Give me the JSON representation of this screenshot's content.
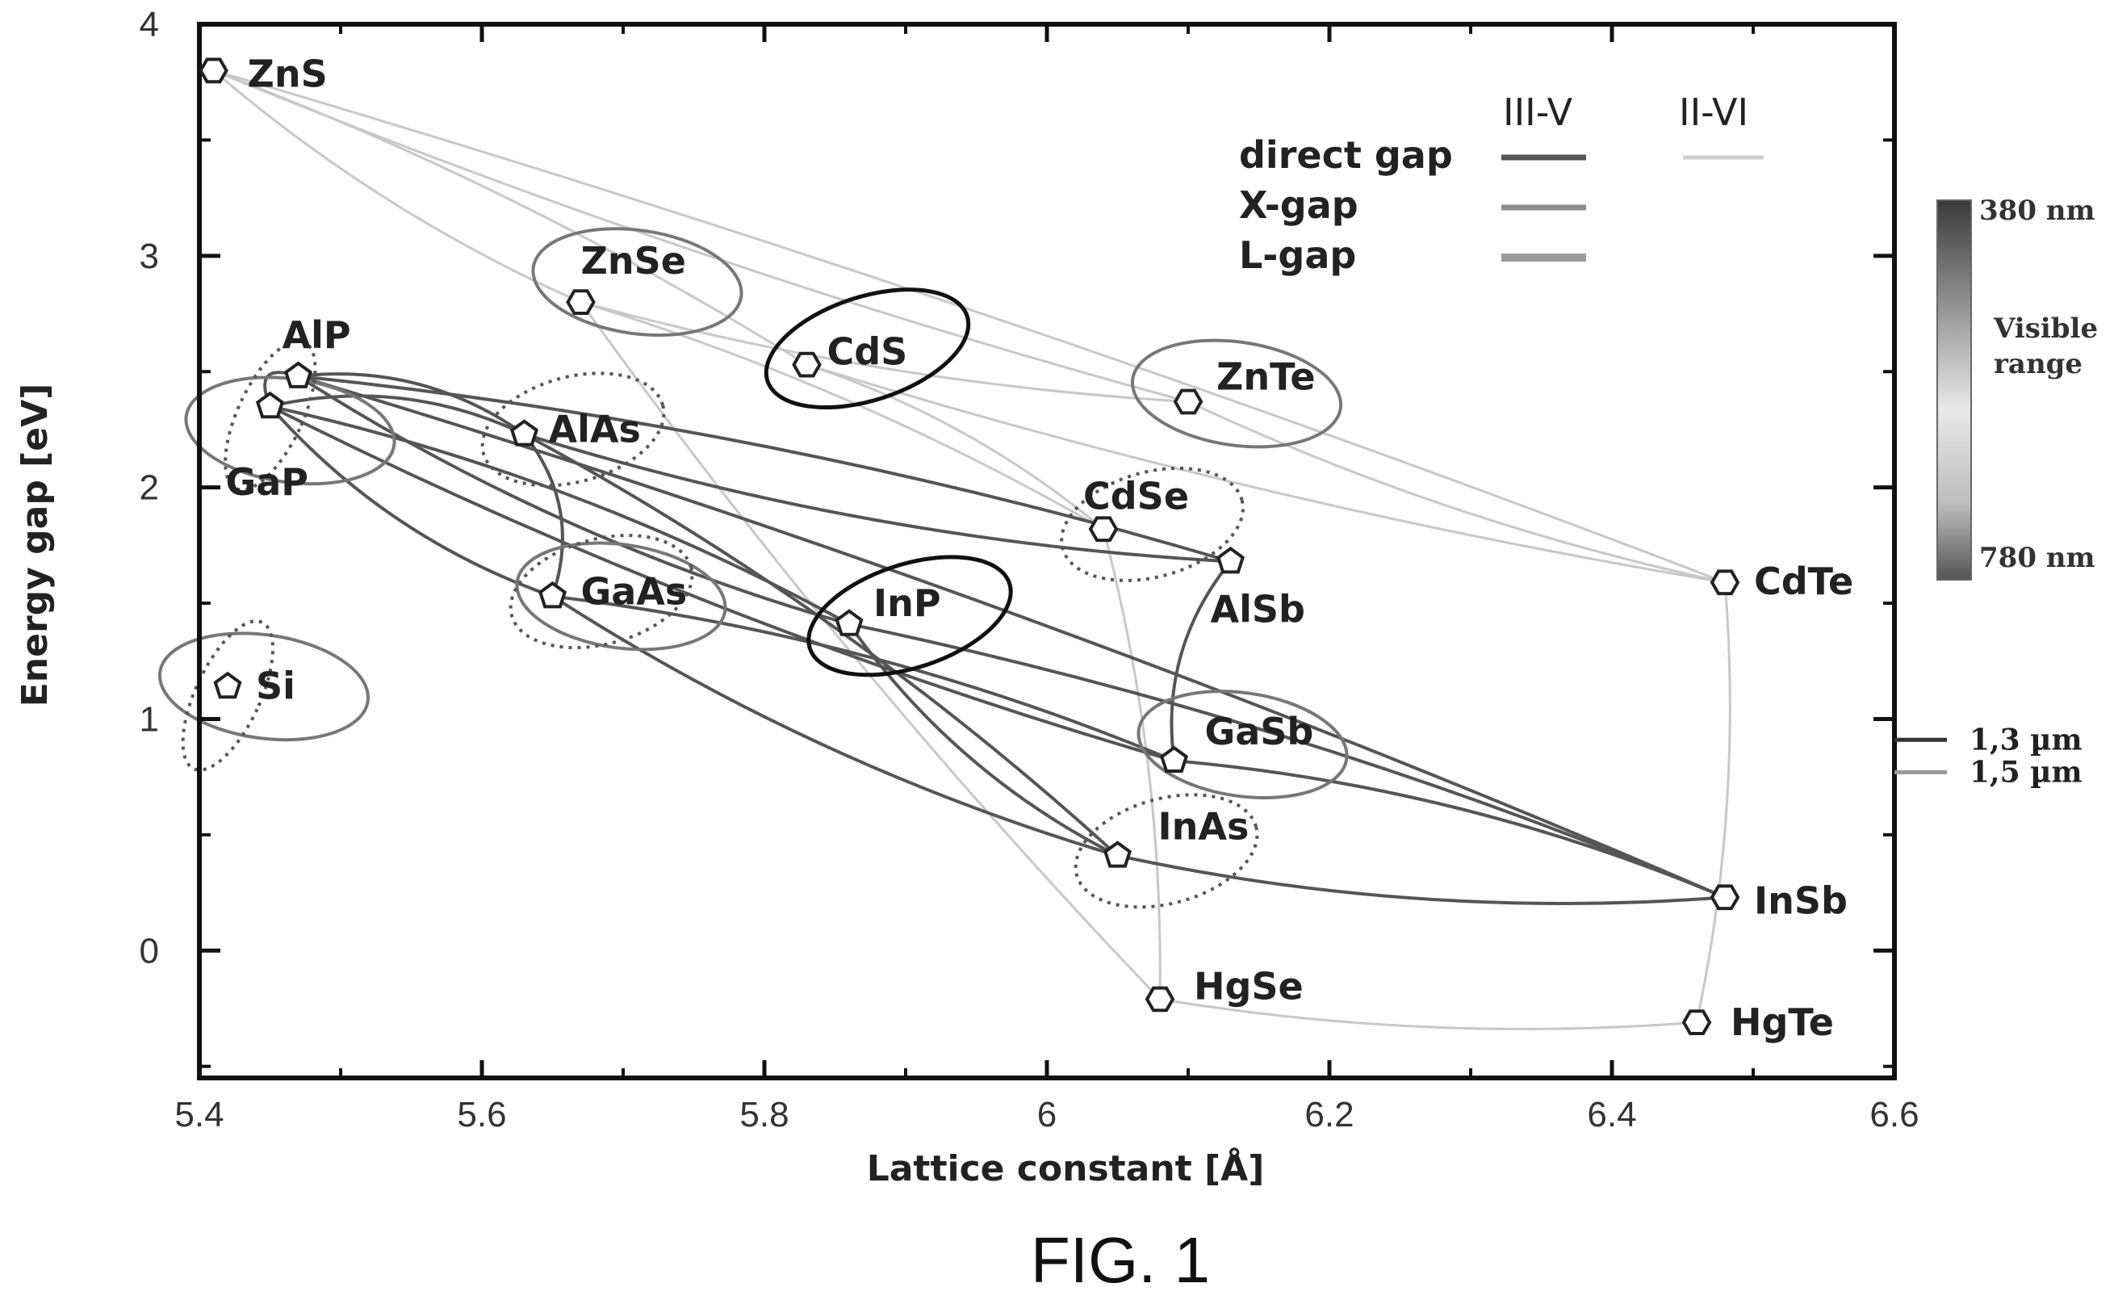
{
  "chart_data": {
    "type": "scatter",
    "xlabel": "Lattice constant [Å]",
    "ylabel": "Energy gap [eV]",
    "xlim": [
      5.4,
      6.6
    ],
    "ylim": [
      -0.55,
      4.0
    ],
    "x_ticks": [
      5.4,
      5.6,
      5.8,
      6.0,
      6.2,
      6.4,
      6.6
    ],
    "x_tick_labels": [
      "5.4",
      "5.6",
      "5.8",
      "6",
      "6.2",
      "6.4",
      "6.6"
    ],
    "y_ticks": [
      0,
      1,
      2,
      3,
      4
    ],
    "y_tick_labels": [
      "0",
      "1",
      "2",
      "3",
      "4"
    ],
    "materials": [
      {
        "name": "ZnS",
        "x": 5.41,
        "y": 3.8,
        "marker": "hexagon"
      },
      {
        "name": "ZnSe",
        "x": 5.67,
        "y": 2.8,
        "marker": "hexagon"
      },
      {
        "name": "CdS",
        "x": 5.83,
        "y": 2.53,
        "marker": "hexagon"
      },
      {
        "name": "ZnTe",
        "x": 6.1,
        "y": 2.37,
        "marker": "hexagon"
      },
      {
        "name": "AlP",
        "x": 5.47,
        "y": 2.48,
        "marker": "pentagon"
      },
      {
        "name": "GaP",
        "x": 5.45,
        "y": 2.35,
        "marker": "pentagon"
      },
      {
        "name": "AlAs",
        "x": 5.63,
        "y": 2.23,
        "marker": "pentagon"
      },
      {
        "name": "CdSe",
        "x": 6.04,
        "y": 1.82,
        "marker": "hexagon"
      },
      {
        "name": "AlSb",
        "x": 6.13,
        "y": 1.68,
        "marker": "pentagon"
      },
      {
        "name": "GaAs",
        "x": 5.65,
        "y": 1.53,
        "marker": "pentagon"
      },
      {
        "name": "InP",
        "x": 5.86,
        "y": 1.41,
        "marker": "pentagon"
      },
      {
        "name": "CdTe",
        "x": 6.48,
        "y": 1.59,
        "marker": "hexagon"
      },
      {
        "name": "Si",
        "x": 5.42,
        "y": 1.14,
        "marker": "pentagon"
      },
      {
        "name": "GaSb",
        "x": 6.09,
        "y": 0.82,
        "marker": "pentagon"
      },
      {
        "name": "InAs",
        "x": 6.05,
        "y": 0.41,
        "marker": "pentagon"
      },
      {
        "name": "InSb",
        "x": 6.48,
        "y": 0.23,
        "marker": "hexagon"
      },
      {
        "name": "HgSe",
        "x": 6.08,
        "y": -0.21,
        "marker": "hexagon"
      },
      {
        "name": "HgTe",
        "x": 6.46,
        "y": -0.31,
        "marker": "hexagon"
      }
    ],
    "iii_v_links": [
      [
        "AlP",
        "AlAs"
      ],
      [
        "AlP",
        "GaP"
      ],
      [
        "AlP",
        "AlSb"
      ],
      [
        "AlP",
        "InP"
      ],
      [
        "GaP",
        "AlAs"
      ],
      [
        "GaP",
        "GaAs"
      ],
      [
        "GaP",
        "InP"
      ],
      [
        "GaP",
        "GaSb"
      ],
      [
        "AlAs",
        "GaAs"
      ],
      [
        "AlAs",
        "AlSb"
      ],
      [
        "AlAs",
        "InAs"
      ],
      [
        "GaAs",
        "InAs"
      ],
      [
        "GaAs",
        "GaSb"
      ],
      [
        "InP",
        "InAs"
      ],
      [
        "InP",
        "InSb"
      ],
      [
        "AlSb",
        "GaSb"
      ],
      [
        "GaSb",
        "InSb"
      ],
      [
        "InAs",
        "InSb"
      ],
      [
        "AlP",
        "InSb"
      ]
    ],
    "ii_vi_links": [
      [
        "ZnS",
        "ZnSe"
      ],
      [
        "ZnS",
        "CdS"
      ],
      [
        "ZnS",
        "ZnTe"
      ],
      [
        "ZnS",
        "CdTe"
      ],
      [
        "ZnSe",
        "ZnTe"
      ],
      [
        "ZnSe",
        "CdSe"
      ],
      [
        "ZnSe",
        "HgSe"
      ],
      [
        "CdS",
        "CdSe"
      ],
      [
        "CdS",
        "CdTe"
      ],
      [
        "CdSe",
        "HgSe"
      ],
      [
        "ZnTe",
        "CdTe"
      ],
      [
        "CdTe",
        "HgTe"
      ],
      [
        "HgSe",
        "HgTe"
      ]
    ],
    "legend": {
      "placement": "top-right",
      "headers": [
        "III-V",
        "II-VI"
      ],
      "entries": [
        "direct gap",
        "X-gap",
        "L-gap"
      ]
    },
    "visible_range_bar": {
      "label_top": "380 nm",
      "label_bottom": "780 nm",
      "title_line1": "Visible",
      "title_line2": "range"
    },
    "wavelength_markers": [
      {
        "label": "1,3 µm",
        "y": 0.91,
        "color": "#333333"
      },
      {
        "label": "1,5 µm",
        "y": 0.77,
        "color": "#9a9a9a"
      }
    ],
    "colors": {
      "iii_v": "#555555",
      "ii_vi": "#c8c8c8",
      "axis": "#111111"
    }
  },
  "caption": "FIG. 1"
}
